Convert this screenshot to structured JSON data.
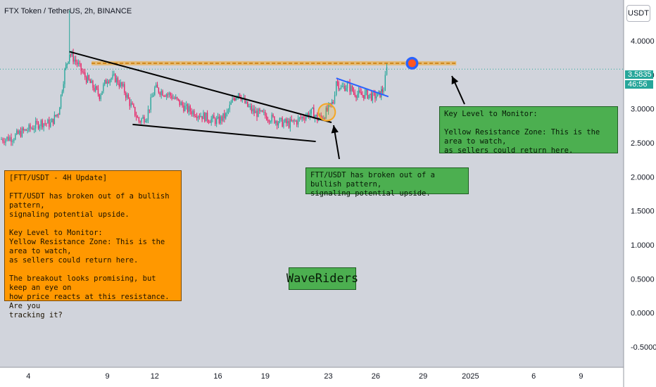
{
  "header": {
    "title": "FTX Token / TetherUS, 2h, BINANCE"
  },
  "axis": {
    "unit": "USDT"
  },
  "price_tag": {
    "price": "3.5835",
    "countdown": "46:56",
    "color": "#26a69a"
  },
  "notes": {
    "update": {
      "title": "[FTT/USDT - 4H Update]",
      "p1": "FTT/USDT has broken out of a bullish pattern,\nsignaling potential upside.",
      "p2": "Key Level to Monitor:\nYellow Resistance Zone: This is the area to watch,\nas sellers could return here.",
      "p3": "The breakout looks promising, but keep an eye on\nhow price reacts at this resistance. Are you\ntracking it?"
    },
    "breakout": "FTT/USDT has broken out of a bullish pattern,\nsignaling potential upside.",
    "key_level": {
      "title": "Key Level to Monitor:",
      "body": "Yellow Resistance Zone: This is the area to watch,\nas sellers could return here."
    },
    "brand": "WaveRiders"
  },
  "colors": {
    "up": "#26a69a",
    "down": "#e91e63",
    "resistance": "#f5a623",
    "trend": "#000000",
    "blue_trend": "#2962ff",
    "orange_box": "#ff9800",
    "green_box": "#4caf50"
  },
  "chart_data": {
    "type": "candlestick",
    "title": "FTX Token / TetherUS, 2h, BINANCE",
    "y_unit": "USDT",
    "ylim": [
      -0.8,
      4.6
    ],
    "y_ticks": [
      4.0,
      3.5,
      3.0,
      2.5,
      2.0,
      1.5,
      1.0,
      0.5,
      0.0,
      -0.5
    ],
    "y_tick_labels": [
      "4.0000",
      "3.5000",
      "3.0000",
      "2.5000",
      "2.0000",
      "1.5000",
      "1.0000",
      "0.5000",
      "0.0000",
      "-0.5000"
    ],
    "x_tick_labels": [
      "4",
      "9",
      "12",
      "16",
      "19",
      "23",
      "26",
      "29",
      "2025",
      "6",
      "9"
    ],
    "x_tick_days": [
      4,
      9,
      12,
      16,
      19,
      23,
      26,
      29,
      32,
      36,
      39
    ],
    "x_day_range": [
      2.2,
      41.7
    ],
    "last_price": 3.5835,
    "resistance_level": 3.67,
    "close_path": [
      [
        2.2,
        2.55
      ],
      [
        3.0,
        2.58
      ],
      [
        3.6,
        2.66
      ],
      [
        4.2,
        2.72
      ],
      [
        4.8,
        2.8
      ],
      [
        5.4,
        2.78
      ],
      [
        5.9,
        2.95
      ],
      [
        6.3,
        3.55
      ],
      [
        6.6,
        3.82
      ],
      [
        7.0,
        3.7
      ],
      [
        7.5,
        3.5
      ],
      [
        8.0,
        3.35
      ],
      [
        8.5,
        3.2
      ],
      [
        9.0,
        3.45
      ],
      [
        9.5,
        3.45
      ],
      [
        10.0,
        3.3
      ],
      [
        10.5,
        3.05
      ],
      [
        11.0,
        2.82
      ],
      [
        11.5,
        2.9
      ],
      [
        12.0,
        3.3
      ],
      [
        12.5,
        3.25
      ],
      [
        13.0,
        3.2
      ],
      [
        13.5,
        3.1
      ],
      [
        14.0,
        3.0
      ],
      [
        14.5,
        2.95
      ],
      [
        15.0,
        2.9
      ],
      [
        15.5,
        2.85
      ],
      [
        16.0,
        2.82
      ],
      [
        16.5,
        2.9
      ],
      [
        17.0,
        3.15
      ],
      [
        17.3,
        3.25
      ],
      [
        17.8,
        3.05
      ],
      [
        18.3,
        2.95
      ],
      [
        19.0,
        2.9
      ],
      [
        19.5,
        2.85
      ],
      [
        20.0,
        2.8
      ],
      [
        20.5,
        2.78
      ],
      [
        21.0,
        2.82
      ],
      [
        21.5,
        2.9
      ],
      [
        22.0,
        2.95
      ],
      [
        22.3,
        2.85
      ],
      [
        22.7,
        2.9
      ],
      [
        23.0,
        3.0
      ],
      [
        23.3,
        3.1
      ],
      [
        23.5,
        3.42
      ],
      [
        23.8,
        3.3
      ],
      [
        24.2,
        3.35
      ],
      [
        24.6,
        3.25
      ],
      [
        25.0,
        3.2
      ],
      [
        25.4,
        3.22
      ],
      [
        25.8,
        3.18
      ],
      [
        26.2,
        3.2
      ],
      [
        26.5,
        3.3
      ],
      [
        26.7,
        3.5835
      ]
    ],
    "drawings": {
      "resistance_zone": {
        "from_day": 8.0,
        "to_day": 31.1,
        "value": 3.67
      },
      "upper_trendline": {
        "from": [
          6.6,
          3.84
        ],
        "to": [
          23.2,
          2.8
        ]
      },
      "lower_trendline": {
        "from": [
          10.6,
          2.77
        ],
        "to": [
          22.2,
          2.52
        ]
      },
      "blue_trendline": {
        "from": [
          23.5,
          3.45
        ],
        "to": [
          26.8,
          3.18
        ]
      },
      "breakout_circle": {
        "day": 22.9,
        "value": 2.95
      },
      "target_marker": {
        "day": 28.3,
        "value": 3.67
      }
    }
  }
}
